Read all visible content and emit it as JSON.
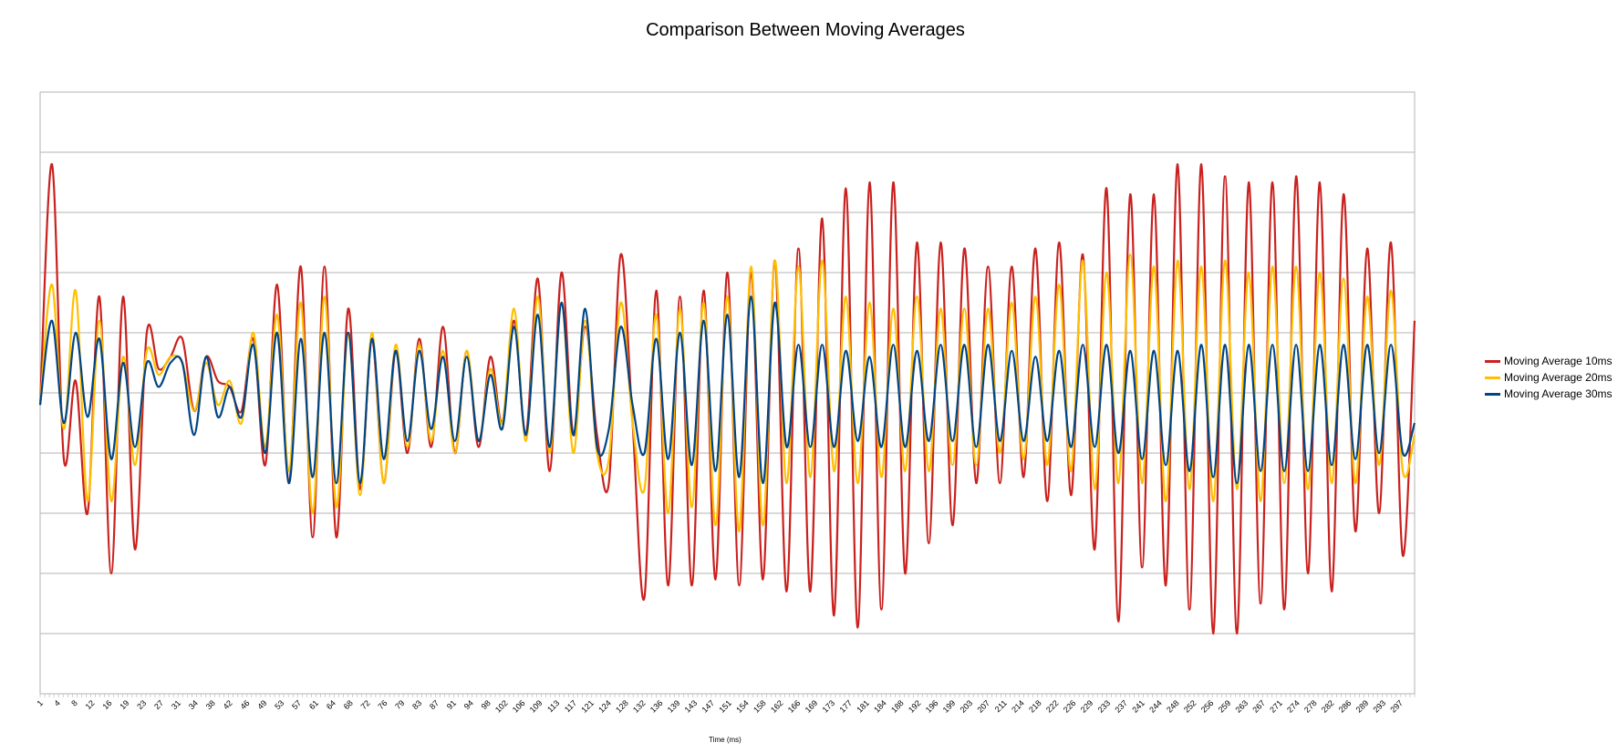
{
  "chart_data": {
    "type": "line",
    "title": "Comparison Between Moving Averages",
    "xlabel": "Time (ms)",
    "ylabel": "",
    "ylim": [
      -5,
      5
    ],
    "grid": true,
    "legend_position": "right",
    "x_tick_labels": [
      "1",
      "4",
      "8",
      "12",
      "16",
      "19",
      "23",
      "27",
      "31",
      "34",
      "38",
      "42",
      "46",
      "49",
      "53",
      "57",
      "61",
      "64",
      "68",
      "72",
      "76",
      "79",
      "83",
      "87",
      "91",
      "94",
      "98",
      "102",
      "106",
      "109",
      "113",
      "117",
      "121",
      "124",
      "128",
      "132",
      "136",
      "139",
      "143",
      "147",
      "151",
      "154",
      "158",
      "162",
      "166",
      "169",
      "173",
      "177",
      "181",
      "184",
      "188",
      "192",
      "196",
      "199",
      "203",
      "207",
      "211",
      "214",
      "218",
      "222",
      "226",
      "229",
      "233",
      "237",
      "241",
      "244",
      "248",
      "252",
      "256",
      "259",
      "263",
      "267",
      "271",
      "274",
      "278",
      "282",
      "286",
      "289",
      "293",
      "297"
    ],
    "series": [
      {
        "name": "Moving Average 10ms",
        "color": "#c9211e",
        "values": [
          -0.2,
          3.8,
          -1.1,
          0.2,
          -2.0,
          1.6,
          -3.0,
          1.6,
          -2.6,
          1.0,
          0.4,
          0.6,
          0.9,
          -0.3,
          0.6,
          0.2,
          0.1,
          -0.3,
          0.9,
          -1.2,
          1.8,
          -1.5,
          2.1,
          -2.4,
          2.1,
          -2.4,
          1.4,
          -1.6,
          0.9,
          -1.5,
          0.7,
          -1.0,
          0.9,
          -0.9,
          1.1,
          -1.0,
          0.7,
          -0.9,
          0.6,
          -0.5,
          1.2,
          -0.7,
          1.9,
          -1.3,
          2.0,
          -0.7,
          1.1,
          -0.7,
          -1.5,
          2.3,
          -0.5,
          -3.4,
          1.7,
          -3.2,
          1.6,
          -3.2,
          1.7,
          -3.1,
          2.0,
          -3.2,
          2.0,
          -3.1,
          2.2,
          -3.3,
          2.4,
          -3.3,
          2.9,
          -3.7,
          3.4,
          -3.9,
          3.5,
          -3.6,
          3.5,
          -3.0,
          2.5,
          -2.5,
          2.5,
          -2.2,
          2.4,
          -1.5,
          2.1,
          -1.5,
          2.1,
          -1.4,
          2.4,
          -1.8,
          2.5,
          -1.7,
          2.3,
          -2.6,
          3.4,
          -3.8,
          3.3,
          -2.9,
          3.3,
          -3.2,
          3.8,
          -3.6,
          3.8,
          -4.0,
          3.6,
          -4.0,
          3.5,
          -3.5,
          3.5,
          -3.6,
          3.6,
          -3.0,
          3.5,
          -3.3,
          3.3,
          -2.3,
          2.4,
          -2.0,
          2.5,
          -2.7,
          1.2
        ]
      },
      {
        "name": "Moving Average 20ms",
        "color": "#ffbf00",
        "values": [
          -0.2,
          1.8,
          -0.6,
          1.7,
          -1.8,
          1.2,
          -1.8,
          0.6,
          -1.2,
          0.7,
          0.3,
          0.6,
          0.5,
          -0.3,
          0.5,
          -0.2,
          0.2,
          -0.5,
          1.0,
          -0.9,
          1.3,
          -1.3,
          1.5,
          -2.0,
          1.6,
          -1.9,
          1.0,
          -1.7,
          1.0,
          -1.5,
          0.8,
          -0.9,
          0.8,
          -0.8,
          0.7,
          -1.0,
          0.7,
          -0.8,
          0.4,
          -0.5,
          1.4,
          -0.8,
          1.6,
          -1.0,
          1.5,
          -1.0,
          1.2,
          -1.0,
          -1.1,
          1.5,
          -0.5,
          -1.6,
          1.3,
          -2.0,
          1.4,
          -1.9,
          1.5,
          -2.2,
          1.6,
          -2.3,
          2.1,
          -2.2,
          2.2,
          -1.5,
          2.1,
          -1.4,
          2.2,
          -1.3,
          1.6,
          -1.5,
          1.5,
          -1.4,
          1.4,
          -1.3,
          1.6,
          -1.3,
          1.4,
          -1.2,
          1.4,
          -1.2,
          1.4,
          -1.0,
          1.5,
          -1.1,
          1.6,
          -1.2,
          1.8,
          -1.3,
          2.2,
          -1.6,
          2.0,
          -1.5,
          2.3,
          -1.5,
          2.1,
          -1.8,
          2.2,
          -1.6,
          2.1,
          -1.8,
          2.2,
          -1.6,
          2.0,
          -1.8,
          2.1,
          -1.5,
          2.1,
          -1.6,
          2.0,
          -1.5,
          1.9,
          -1.5,
          1.6,
          -1.2,
          1.7,
          -1.3,
          -0.7
        ]
      },
      {
        "name": "Moving Average 30ms",
        "color": "#004586",
        "values": [
          -0.2,
          1.2,
          -0.5,
          1.0,
          -0.4,
          0.9,
          -1.1,
          0.5,
          -0.9,
          0.5,
          0.1,
          0.5,
          0.5,
          -0.7,
          0.6,
          -0.4,
          0.1,
          -0.4,
          0.8,
          -1.0,
          1.0,
          -1.5,
          0.9,
          -1.4,
          1.0,
          -1.5,
          1.0,
          -1.5,
          0.9,
          -1.1,
          0.7,
          -0.8,
          0.7,
          -0.6,
          0.6,
          -0.8,
          0.6,
          -0.8,
          0.3,
          -0.6,
          1.1,
          -0.7,
          1.3,
          -0.9,
          1.5,
          -0.7,
          1.4,
          -0.9,
          -0.6,
          1.1,
          -0.2,
          -1.0,
          0.9,
          -1.1,
          1.0,
          -1.2,
          1.2,
          -1.3,
          1.3,
          -1.4,
          1.6,
          -1.5,
          1.5,
          -0.9,
          0.8,
          -0.9,
          0.8,
          -0.9,
          0.7,
          -0.8,
          0.6,
          -0.9,
          0.8,
          -0.9,
          0.7,
          -0.8,
          0.8,
          -0.8,
          0.8,
          -0.9,
          0.8,
          -0.8,
          0.7,
          -0.8,
          0.6,
          -0.8,
          0.7,
          -0.9,
          0.8,
          -0.9,
          0.8,
          -1.0,
          0.7,
          -1.1,
          0.7,
          -1.2,
          0.7,
          -1.3,
          0.8,
          -1.4,
          0.8,
          -1.5,
          0.8,
          -1.3,
          0.8,
          -1.3,
          0.8,
          -1.3,
          0.8,
          -1.2,
          0.8,
          -1.1,
          0.8,
          -1.0,
          0.8,
          -1.0,
          -0.5
        ]
      }
    ]
  }
}
